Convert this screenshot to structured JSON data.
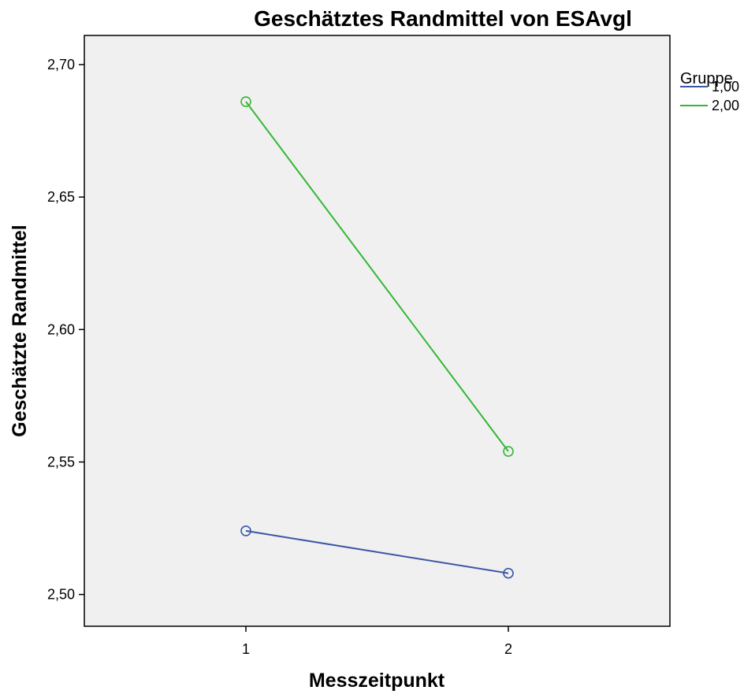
{
  "chart_data": {
    "type": "line",
    "title": "Geschätztes Randmittel von ESAvgl",
    "xlabel": "Messzeitpunkt",
    "ylabel": "Geschätzte Randmittel",
    "categories": [
      "1",
      "2"
    ],
    "ylim": [
      2.488,
      2.711
    ],
    "yticks": [
      2.5,
      2.55,
      2.6,
      2.65,
      2.7
    ],
    "ytick_labels": [
      "2,50",
      "2,55",
      "2,60",
      "2,65",
      "2,70"
    ],
    "grid": false,
    "markers": "open-circle",
    "legend": {
      "title": "Gruppe",
      "placement": "right"
    },
    "series": [
      {
        "name": "1,00",
        "color": "#3b56a6",
        "values": [
          2.524,
          2.508
        ]
      },
      {
        "name": "2,00",
        "color": "#35b635",
        "values": [
          2.686,
          2.554
        ]
      }
    ],
    "plot_background": "#f0f0f0"
  }
}
